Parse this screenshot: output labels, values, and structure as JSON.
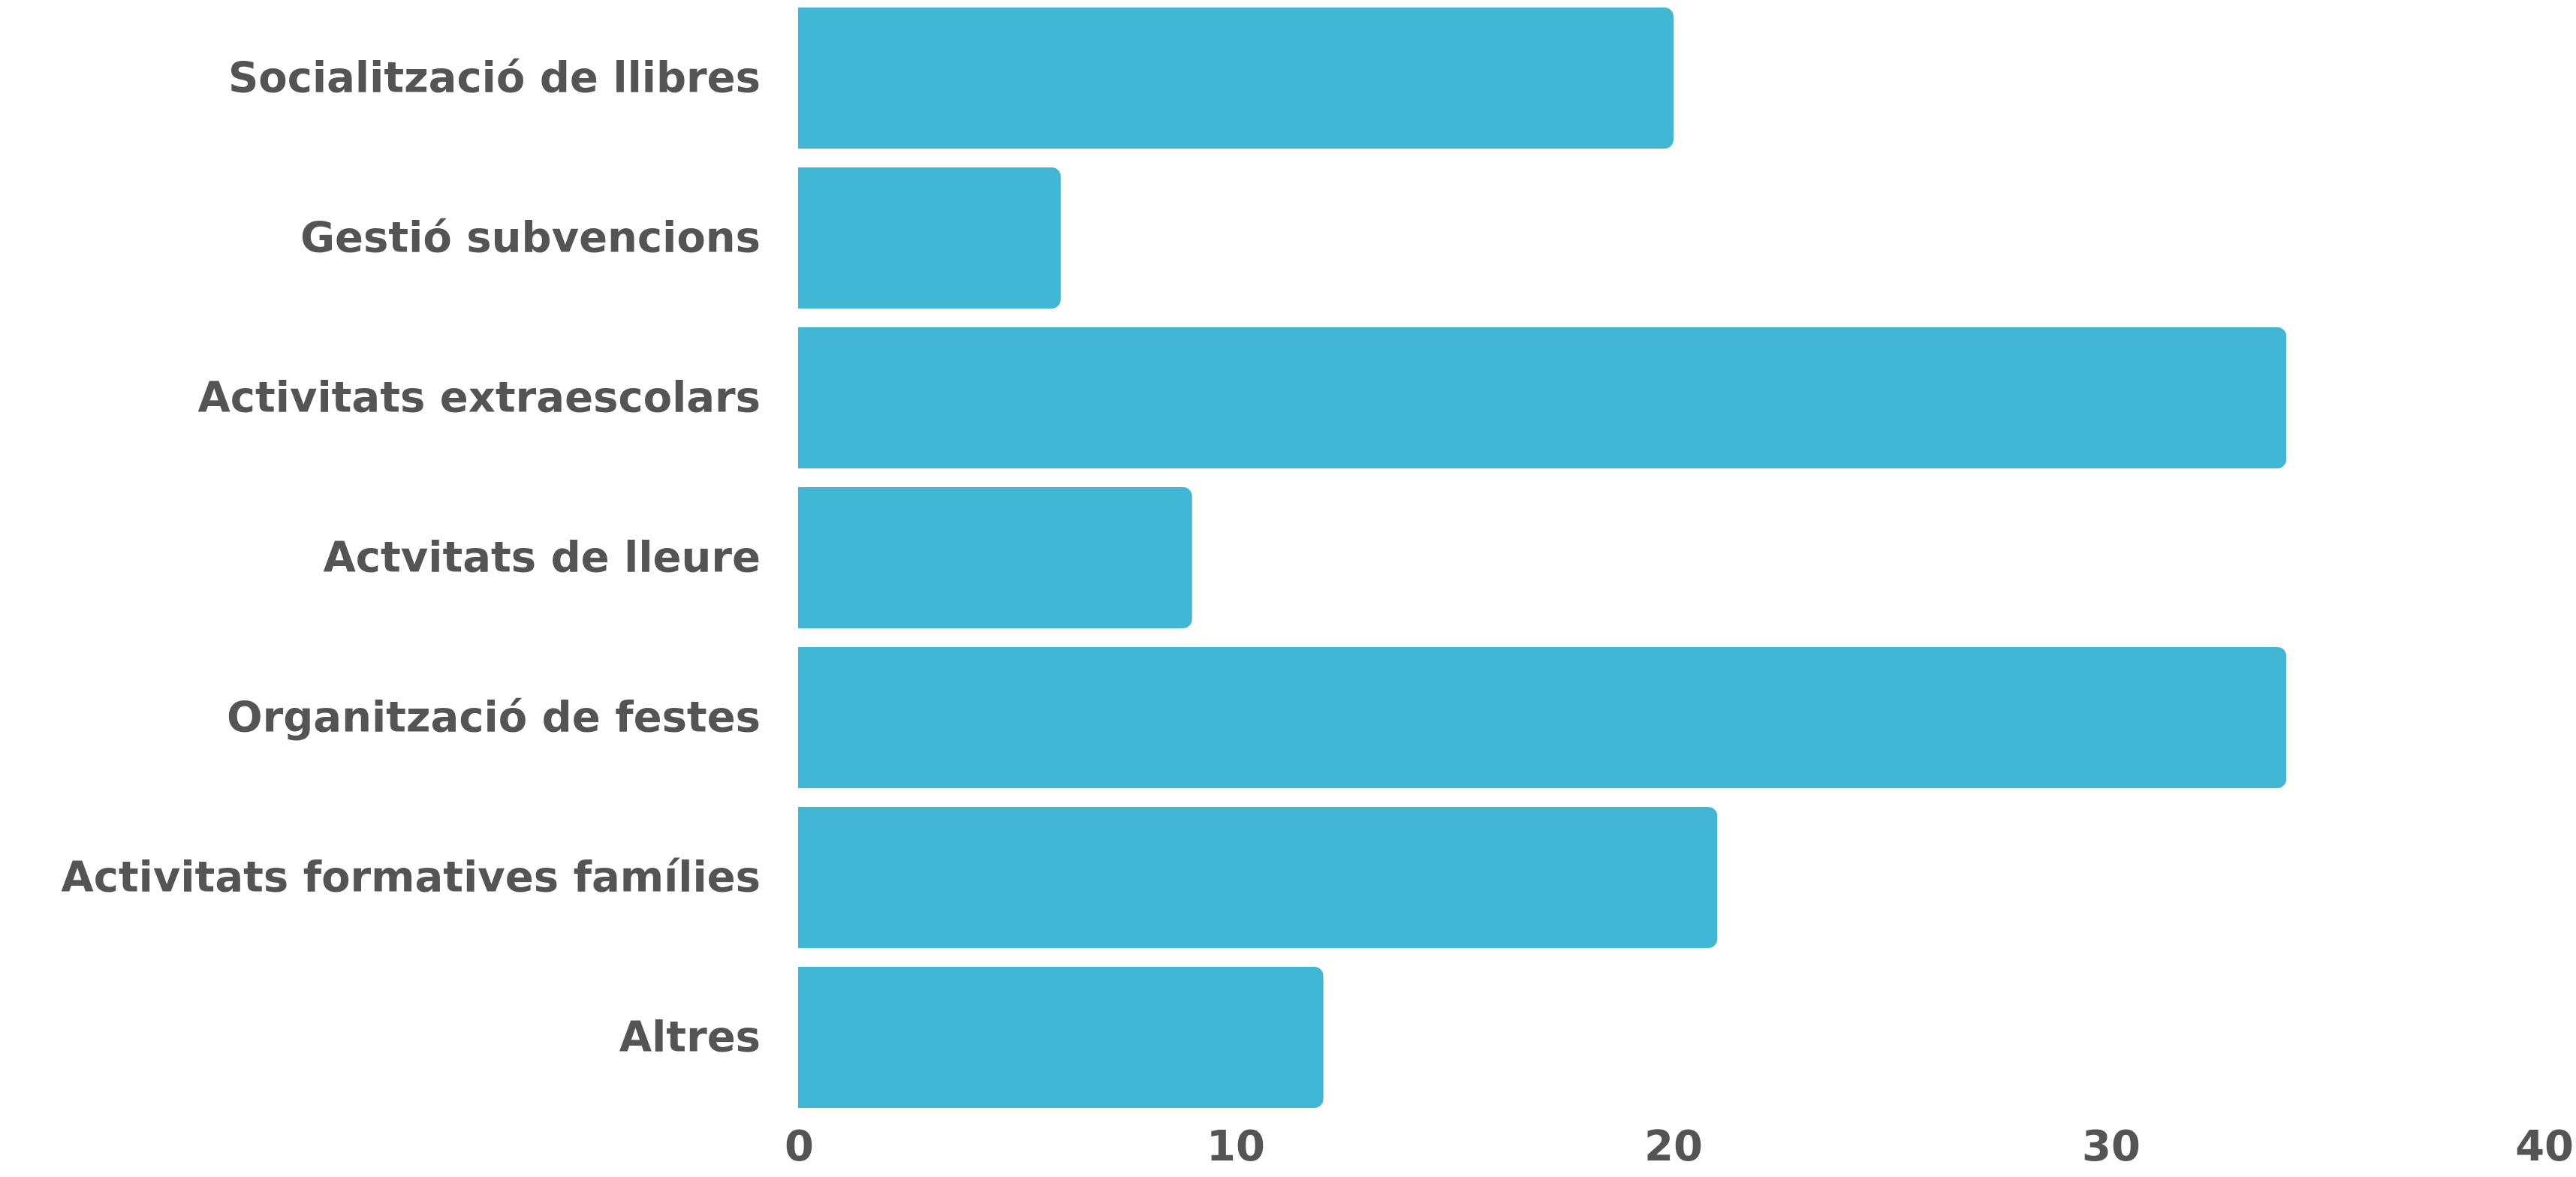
{
  "chart_data": {
    "type": "bar",
    "orientation": "horizontal",
    "categories": [
      "Socialització de llibres",
      "Gestió subvencions",
      "Activitats extraescolars",
      "Actvitats de lleure",
      "Organització de festes",
      "Activitats formatives famílies",
      "Altres"
    ],
    "values": [
      20,
      6,
      34,
      9,
      34,
      21,
      12
    ],
    "xlim": [
      0,
      40
    ],
    "xticks": [
      "0",
      "10",
      "20",
      "30",
      "40"
    ],
    "grid": false,
    "legend": "none",
    "title": "",
    "xlabel": "",
    "ylabel": "",
    "colors": {
      "bar": "#42b6d5",
      "text": "#545454"
    }
  }
}
